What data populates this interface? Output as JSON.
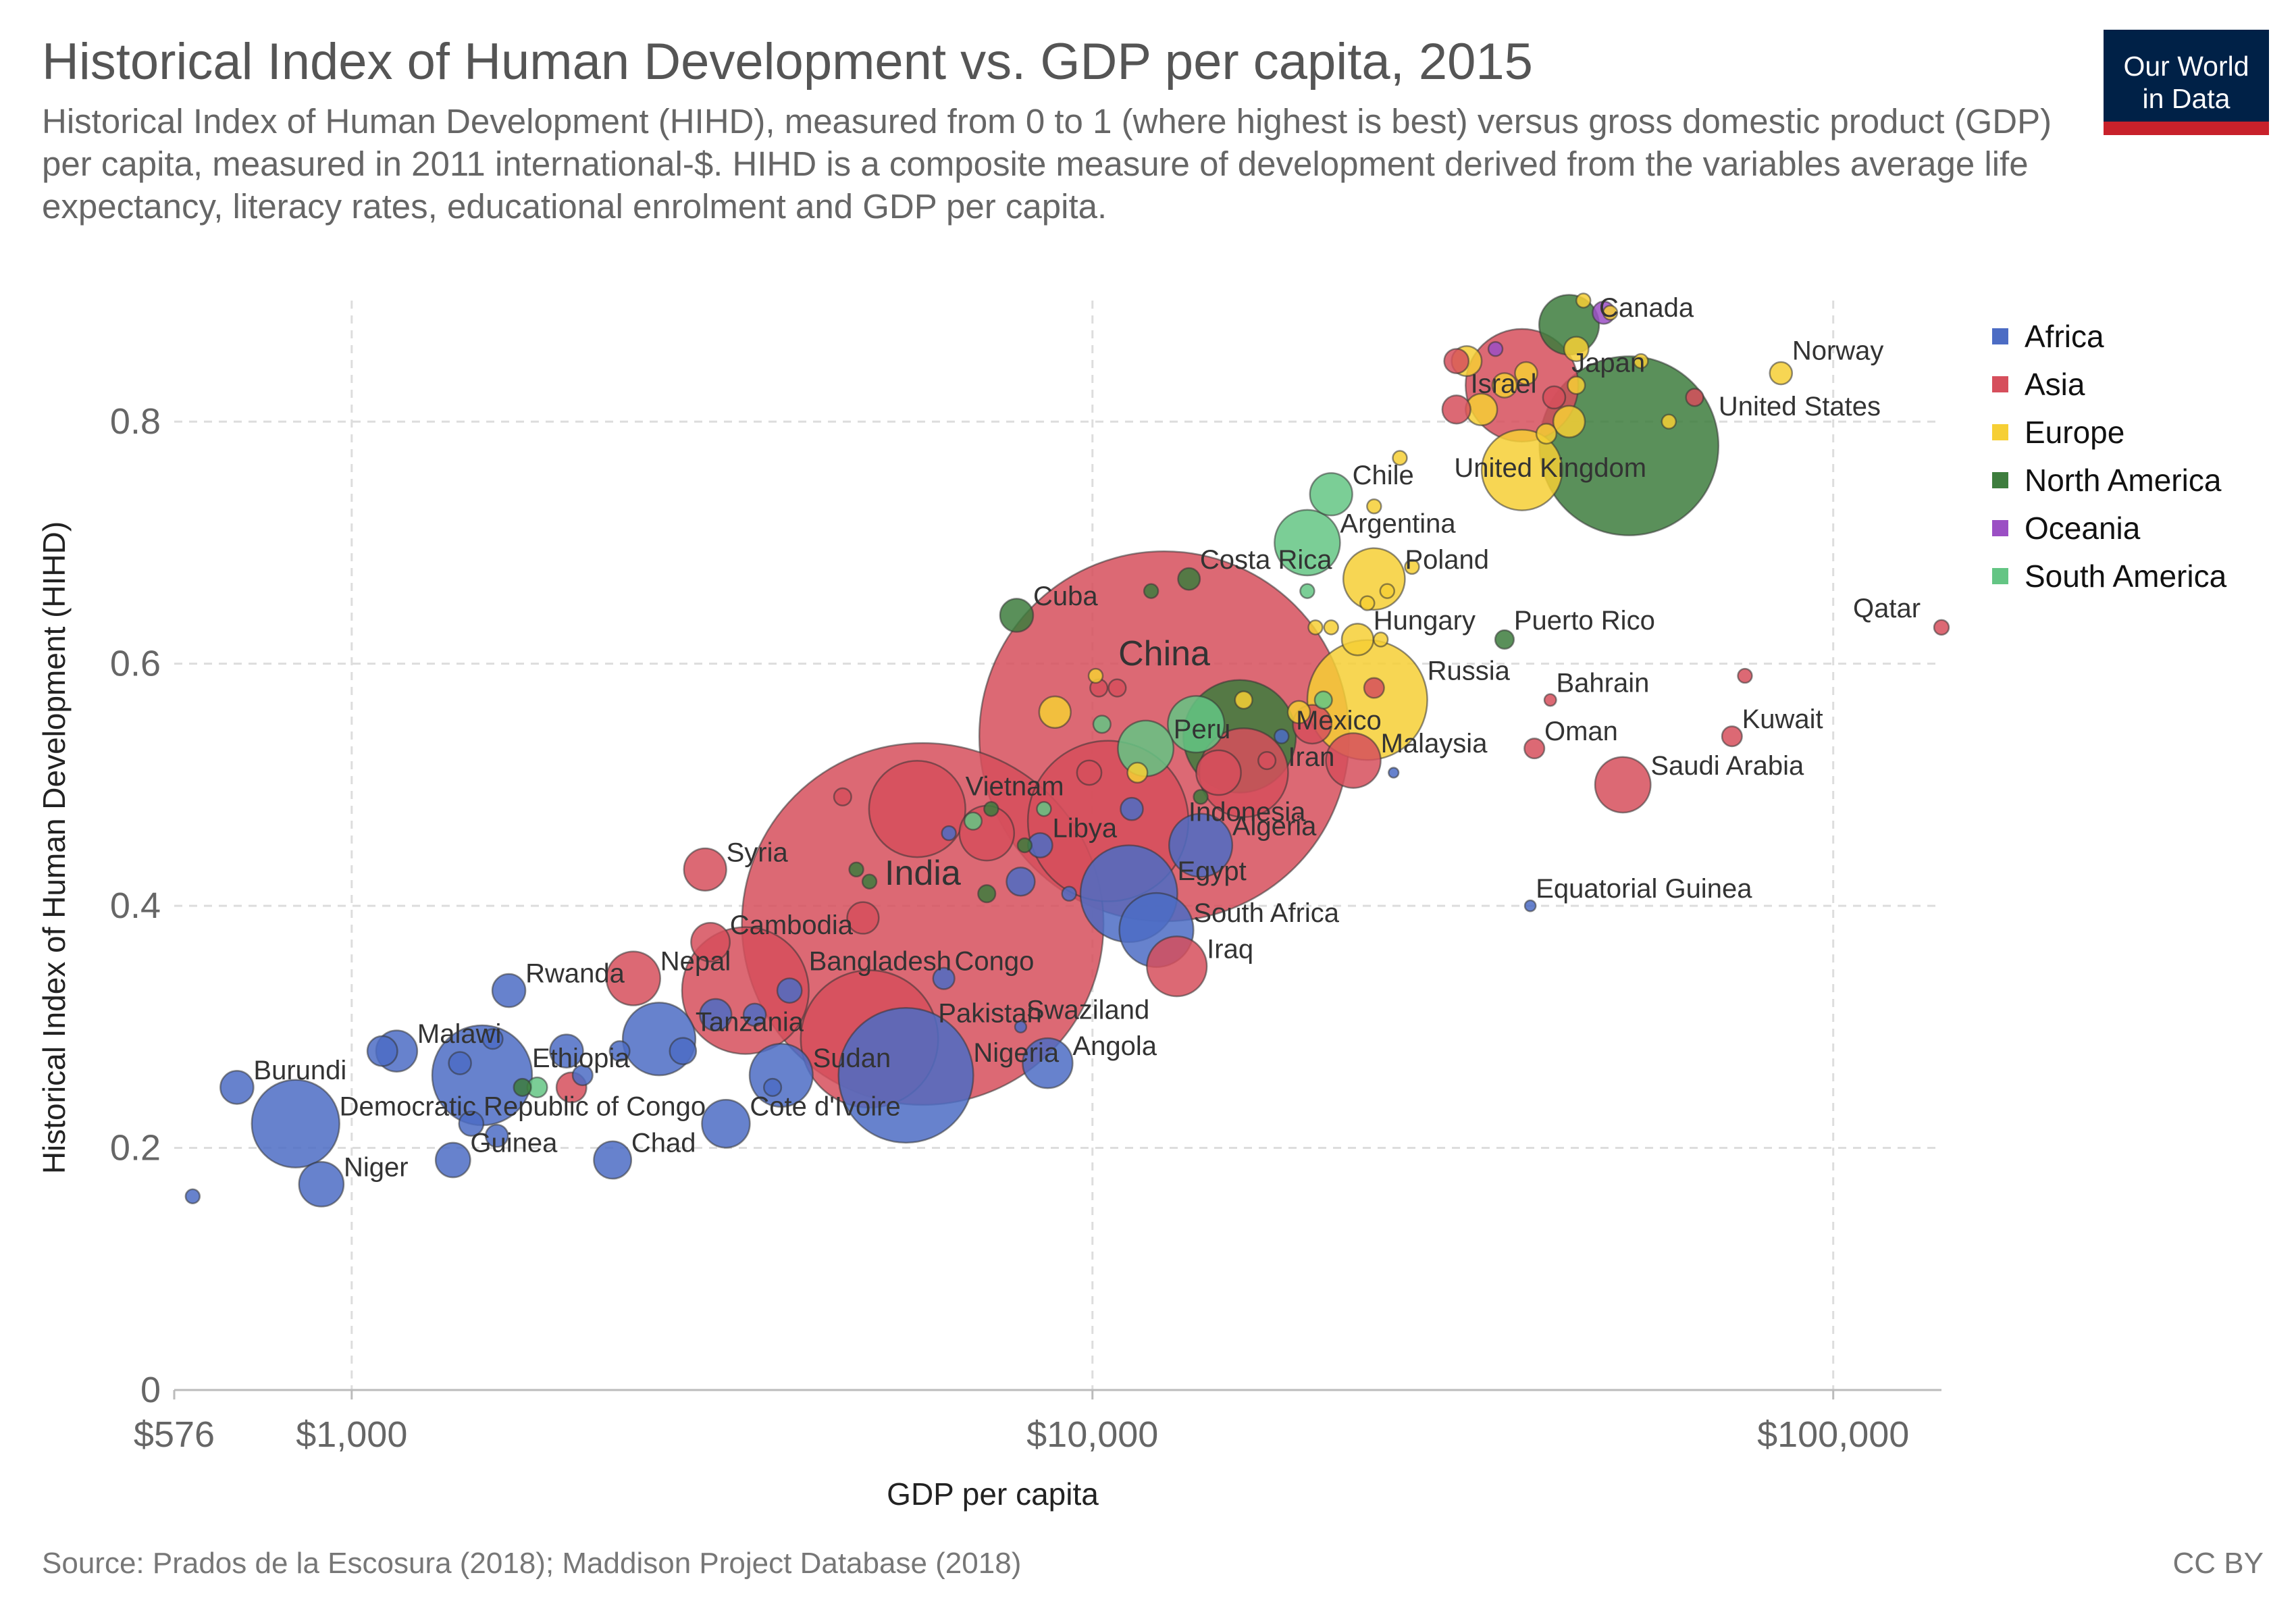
{
  "header": {
    "title": "Historical Index of Human Development vs. GDP per capita, 2015",
    "subtitle": "Historical Index of Human Development (HIHD), measured from 0 to 1 (where highest is best) versus gross domestic product (GDP) per capita, measured in 2011 international-$. HIHD is a composite measure of development derived from the variables average life expectancy, literacy rates, educational enrolment and GDP per capita.",
    "logo_line1": "Our World",
    "logo_line2": "in Data"
  },
  "footer": {
    "source": "Source: Prados de la Escosura (2018); Maddison Project Database (2018)",
    "license": "CC BY"
  },
  "colors": {
    "Africa": "#4c6cc4",
    "Asia": "#d64f5c",
    "Europe": "#f6cf35",
    "North America": "#3d7d3d",
    "Oceania": "#9b4fc4",
    "South America": "#64c584"
  },
  "chart_data": {
    "type": "scatter",
    "title": "Historical Index of Human Development vs. GDP per capita, 2015",
    "xlabel": "GDP per capita",
    "ylabel": "Historical Index of Human Development (HIHD)",
    "x_scale": "log",
    "xlim": [
      576,
      140000
    ],
    "ylim": [
      0,
      0.9
    ],
    "x_ticks": [
      {
        "value": 576,
        "label": "$576"
      },
      {
        "value": 1000,
        "label": "$1,000"
      },
      {
        "value": 10000,
        "label": "$10,000"
      },
      {
        "value": 100000,
        "label": "$100,000"
      }
    ],
    "y_ticks": [
      {
        "value": 0,
        "label": "0"
      },
      {
        "value": 0.2,
        "label": "0.2"
      },
      {
        "value": 0.4,
        "label": "0.4"
      },
      {
        "value": 0.6,
        "label": "0.6"
      },
      {
        "value": 0.8,
        "label": "0.8"
      }
    ],
    "grid": true,
    "legend_position": "right",
    "legend": [
      "Africa",
      "Asia",
      "Europe",
      "North America",
      "Oceania",
      "South America"
    ],
    "points": [
      {
        "label": "China",
        "x": 12500,
        "y": 0.54,
        "region": "Asia",
        "size": 1370,
        "big": true
      },
      {
        "label": "India",
        "x": 5900,
        "y": 0.385,
        "region": "Asia",
        "size": 1310,
        "big": true
      },
      {
        "label": "Peru",
        "x": 11800,
        "y": 0.53,
        "region": "South America",
        "size": 31
      },
      {
        "label": "United States",
        "x": 53000,
        "y": 0.78,
        "region": "North America",
        "size": 321
      },
      {
        "label": "Indonesia",
        "x": 10500,
        "y": 0.47,
        "region": "Asia",
        "size": 258
      },
      {
        "label": "Pakistan",
        "x": 5000,
        "y": 0.29,
        "region": "Asia",
        "size": 189
      },
      {
        "label": "Nigeria",
        "x": 5600,
        "y": 0.26,
        "region": "Africa",
        "size": 182
      },
      {
        "label": "Bangladesh",
        "x": 3400,
        "y": 0.33,
        "region": "Asia",
        "size": 161
      },
      {
        "label": "Mexico",
        "x": 15800,
        "y": 0.54,
        "region": "North America",
        "size": 127
      },
      {
        "label": "Japan",
        "x": 38000,
        "y": 0.83,
        "region": "Asia",
        "size": 127
      },
      {
        "label": "Ethiopia",
        "x": 1500,
        "y": 0.26,
        "region": "Africa",
        "size": 100
      },
      {
        "label": "Vietnam",
        "x": 5800,
        "y": 0.48,
        "region": "Asia",
        "size": 93
      },
      {
        "label": "Egypt",
        "x": 11200,
        "y": 0.41,
        "region": "Africa",
        "size": 94
      },
      {
        "label": "Iran",
        "x": 16000,
        "y": 0.51,
        "region": "Asia",
        "size": 79
      },
      {
        "label": "Democratic Republic of Congo",
        "x": 840,
        "y": 0.22,
        "region": "Africa",
        "size": 77
      },
      {
        "label": "Russia",
        "x": 23500,
        "y": 0.57,
        "region": "Europe",
        "size": 144
      },
      {
        "label": "United Kingdom",
        "x": 38000,
        "y": 0.76,
        "region": "Europe",
        "size": 65
      },
      {
        "label": "Tanzania",
        "x": 2600,
        "y": 0.29,
        "region": "Africa",
        "size": 53
      },
      {
        "label": "South Africa",
        "x": 12200,
        "y": 0.38,
        "region": "Africa",
        "size": 55
      },
      {
        "label": "Sudan",
        "x": 3800,
        "y": 0.26,
        "region": "Africa",
        "size": 40
      },
      {
        "label": "Argentina",
        "x": 19500,
        "y": 0.7,
        "region": "South America",
        "size": 43
      },
      {
        "label": "Algeria",
        "x": 14000,
        "y": 0.45,
        "region": "Africa",
        "size": 40
      },
      {
        "label": "Iraq",
        "x": 13000,
        "y": 0.35,
        "region": "Asia",
        "size": 36
      },
      {
        "label": "Poland",
        "x": 24000,
        "y": 0.67,
        "region": "Europe",
        "size": 38
      },
      {
        "label": "Canada",
        "x": 44000,
        "y": 0.88,
        "region": "North America",
        "size": 36
      },
      {
        "label": "Malaysia",
        "x": 22500,
        "y": 0.52,
        "region": "Asia",
        "size": 30
      },
      {
        "label": "Nepal",
        "x": 2400,
        "y": 0.34,
        "region": "Asia",
        "size": 29
      },
      {
        "label": "Saudi Arabia",
        "x": 52000,
        "y": 0.5,
        "region": "Asia",
        "size": 31
      },
      {
        "label": "Angola",
        "x": 8700,
        "y": 0.27,
        "region": "Africa",
        "size": 25
      },
      {
        "label": "Cote d'Ivoire",
        "x": 3200,
        "y": 0.22,
        "region": "Africa",
        "size": 23
      },
      {
        "label": "Niger",
        "x": 910,
        "y": 0.17,
        "region": "Africa",
        "size": 20
      },
      {
        "label": "Chile",
        "x": 21000,
        "y": 0.74,
        "region": "South America",
        "size": 18
      },
      {
        "label": "Malawi",
        "x": 1150,
        "y": 0.28,
        "region": "Africa",
        "size": 17
      },
      {
        "label": "Syria",
        "x": 3000,
        "y": 0.43,
        "region": "Asia",
        "size": 18
      },
      {
        "label": "Cambodia",
        "x": 3050,
        "y": 0.37,
        "region": "Asia",
        "size": 15
      },
      {
        "label": "Guinea",
        "x": 1370,
        "y": 0.19,
        "region": "Africa",
        "size": 12
      },
      {
        "label": "Chad",
        "x": 2250,
        "y": 0.19,
        "region": "Africa",
        "size": 14
      },
      {
        "label": "Rwanda",
        "x": 1630,
        "y": 0.33,
        "region": "Africa",
        "size": 11
      },
      {
        "label": "Burundi",
        "x": 700,
        "y": 0.25,
        "region": "Africa",
        "size": 11
      },
      {
        "label": "Cuba",
        "x": 7900,
        "y": 0.64,
        "region": "North America",
        "size": 11
      },
      {
        "label": "Hungary",
        "x": 22800,
        "y": 0.62,
        "region": "Europe",
        "size": 10
      },
      {
        "label": "Libya",
        "x": 8500,
        "y": 0.45,
        "region": "Africa",
        "size": 6
      },
      {
        "label": "Israel",
        "x": 31000,
        "y": 0.81,
        "region": "Asia",
        "size": 8
      },
      {
        "label": "Norway",
        "x": 85000,
        "y": 0.84,
        "region": "Europe",
        "size": 5
      },
      {
        "label": "Bahrain",
        "x": 41500,
        "y": 0.57,
        "region": "Asia",
        "size": 1.4
      },
      {
        "label": "Oman",
        "x": 39500,
        "y": 0.53,
        "region": "Asia",
        "size": 4
      },
      {
        "label": "Kuwait",
        "x": 73000,
        "y": 0.54,
        "region": "Asia",
        "size": 4
      },
      {
        "label": "Qatar",
        "x": 140000,
        "y": 0.63,
        "region": "Asia",
        "size": 2.2
      },
      {
        "label": "Puerto Rico",
        "x": 36000,
        "y": 0.62,
        "region": "North America",
        "size": 3.5
      },
      {
        "label": "Equatorial Guinea",
        "x": 39000,
        "y": 0.4,
        "region": "Africa",
        "size": 1.2
      },
      {
        "label": "Swaziland",
        "x": 8000,
        "y": 0.3,
        "region": "Africa",
        "size": 1.3
      },
      {
        "label": "Congo",
        "x": 6300,
        "y": 0.34,
        "region": "Africa",
        "size": 4.6
      },
      {
        "label": "Costa Rica",
        "x": 13500,
        "y": 0.67,
        "region": "North America",
        "size": 4.8
      },
      {
        "label": "",
        "x": 610,
        "y": 0.16,
        "region": "Africa",
        "size": 2
      },
      {
        "label": "",
        "x": 1100,
        "y": 0.28,
        "region": "Africa",
        "size": 9
      },
      {
        "label": "",
        "x": 1400,
        "y": 0.27,
        "region": "Africa",
        "size": 5
      },
      {
        "label": "",
        "x": 1450,
        "y": 0.22,
        "region": "Africa",
        "size": 6
      },
      {
        "label": "",
        "x": 1550,
        "y": 0.29,
        "region": "Africa",
        "size": 4
      },
      {
        "label": "",
        "x": 1570,
        "y": 0.21,
        "region": "Africa",
        "size": 5
      },
      {
        "label": "",
        "x": 1950,
        "y": 0.28,
        "region": "Africa",
        "size": 11
      },
      {
        "label": "",
        "x": 2050,
        "y": 0.26,
        "region": "Africa",
        "size": 4
      },
      {
        "label": "",
        "x": 2300,
        "y": 0.28,
        "region": "Africa",
        "size": 4
      },
      {
        "label": "",
        "x": 2800,
        "y": 0.28,
        "region": "Africa",
        "size": 7
      },
      {
        "label": "",
        "x": 3100,
        "y": 0.31,
        "region": "Africa",
        "size": 10
      },
      {
        "label": "",
        "x": 3500,
        "y": 0.31,
        "region": "Africa",
        "size": 5
      },
      {
        "label": "",
        "x": 3700,
        "y": 0.25,
        "region": "Africa",
        "size": 3
      },
      {
        "label": "",
        "x": 3900,
        "y": 0.33,
        "region": "Africa",
        "size": 6
      },
      {
        "label": "",
        "x": 6400,
        "y": 0.46,
        "region": "Africa",
        "size": 2
      },
      {
        "label": "",
        "x": 8000,
        "y": 0.42,
        "region": "Africa",
        "size": 8
      },
      {
        "label": "",
        "x": 9300,
        "y": 0.41,
        "region": "Africa",
        "size": 2
      },
      {
        "label": "",
        "x": 11300,
        "y": 0.48,
        "region": "Africa",
        "size": 5
      },
      {
        "label": "",
        "x": 18000,
        "y": 0.54,
        "region": "Africa",
        "size": 2
      },
      {
        "label": "",
        "x": 25500,
        "y": 0.51,
        "region": "Africa",
        "size": 1
      },
      {
        "label": "",
        "x": 1980,
        "y": 0.25,
        "region": "Asia",
        "size": 9
      },
      {
        "label": "",
        "x": 4600,
        "y": 0.49,
        "region": "Asia",
        "size": 3
      },
      {
        "label": "",
        "x": 4900,
        "y": 0.39,
        "region": "Asia",
        "size": 10
      },
      {
        "label": "",
        "x": 7200,
        "y": 0.46,
        "region": "Asia",
        "size": 30
      },
      {
        "label": "",
        "x": 9900,
        "y": 0.51,
        "region": "Asia",
        "size": 6
      },
      {
        "label": "",
        "x": 10200,
        "y": 0.58,
        "region": "Asia",
        "size": 3
      },
      {
        "label": "",
        "x": 10800,
        "y": 0.58,
        "region": "Asia",
        "size": 3
      },
      {
        "label": "",
        "x": 14800,
        "y": 0.51,
        "region": "Asia",
        "size": 20
      },
      {
        "label": "",
        "x": 17200,
        "y": 0.52,
        "region": "Asia",
        "size": 3
      },
      {
        "label": "",
        "x": 19800,
        "y": 0.55,
        "region": "Asia",
        "size": 15
      },
      {
        "label": "",
        "x": 24000,
        "y": 0.58,
        "region": "Asia",
        "size": 4
      },
      {
        "label": "",
        "x": 31000,
        "y": 0.85,
        "region": "Asia",
        "size": 6
      },
      {
        "label": "",
        "x": 42000,
        "y": 0.82,
        "region": "Asia",
        "size": 5
      },
      {
        "label": "",
        "x": 76000,
        "y": 0.59,
        "region": "Asia",
        "size": 2
      },
      {
        "label": "",
        "x": 65000,
        "y": 0.82,
        "region": "Asia",
        "size": 3
      },
      {
        "label": "",
        "x": 8900,
        "y": 0.56,
        "region": "Europe",
        "size": 10
      },
      {
        "label": "",
        "x": 10100,
        "y": 0.59,
        "region": "Europe",
        "size": 2
      },
      {
        "label": "",
        "x": 11500,
        "y": 0.51,
        "region": "Europe",
        "size": 4
      },
      {
        "label": "",
        "x": 16000,
        "y": 0.57,
        "region": "Europe",
        "size": 3
      },
      {
        "label": "",
        "x": 19000,
        "y": 0.56,
        "region": "Europe",
        "size": 5
      },
      {
        "label": "",
        "x": 20000,
        "y": 0.63,
        "region": "Europe",
        "size": 2
      },
      {
        "label": "",
        "x": 21000,
        "y": 0.63,
        "region": "Europe",
        "size": 2
      },
      {
        "label": "",
        "x": 23500,
        "y": 0.65,
        "region": "Europe",
        "size": 2
      },
      {
        "label": "",
        "x": 24500,
        "y": 0.62,
        "region": "Europe",
        "size": 2
      },
      {
        "label": "",
        "x": 25000,
        "y": 0.66,
        "region": "Europe",
        "size": 2
      },
      {
        "label": "",
        "x": 26000,
        "y": 0.77,
        "region": "Europe",
        "size": 2
      },
      {
        "label": "",
        "x": 24000,
        "y": 0.73,
        "region": "Europe",
        "size": 2
      },
      {
        "label": "",
        "x": 27000,
        "y": 0.68,
        "region": "Europe",
        "size": 2
      },
      {
        "label": "",
        "x": 32000,
        "y": 0.85,
        "region": "Europe",
        "size": 9
      },
      {
        "label": "",
        "x": 33500,
        "y": 0.81,
        "region": "Europe",
        "size": 10
      },
      {
        "label": "",
        "x": 36000,
        "y": 0.83,
        "region": "Europe",
        "size": 6
      },
      {
        "label": "",
        "x": 38500,
        "y": 0.84,
        "region": "Europe",
        "size": 5
      },
      {
        "label": "",
        "x": 41000,
        "y": 0.79,
        "region": "Europe",
        "size": 4
      },
      {
        "label": "",
        "x": 44000,
        "y": 0.8,
        "region": "Europe",
        "size": 10
      },
      {
        "label": "",
        "x": 45000,
        "y": 0.86,
        "region": "Europe",
        "size": 6
      },
      {
        "label": "",
        "x": 45000,
        "y": 0.83,
        "region": "Europe",
        "size": 3
      },
      {
        "label": "",
        "x": 46000,
        "y": 0.9,
        "region": "Europe",
        "size": 2
      },
      {
        "label": "",
        "x": 50000,
        "y": 0.89,
        "region": "Europe",
        "size": 2
      },
      {
        "label": "",
        "x": 55000,
        "y": 0.85,
        "region": "Europe",
        "size": 2
      },
      {
        "label": "",
        "x": 60000,
        "y": 0.8,
        "region": "Europe",
        "size": 2
      },
      {
        "label": "",
        "x": 4800,
        "y": 0.43,
        "region": "North America",
        "size": 2
      },
      {
        "label": "",
        "x": 5000,
        "y": 0.42,
        "region": "North America",
        "size": 2
      },
      {
        "label": "",
        "x": 7200,
        "y": 0.41,
        "region": "North America",
        "size": 3
      },
      {
        "label": "",
        "x": 7300,
        "y": 0.48,
        "region": "North America",
        "size": 2
      },
      {
        "label": "",
        "x": 8100,
        "y": 0.45,
        "region": "North America",
        "size": 2
      },
      {
        "label": "",
        "x": 12000,
        "y": 0.66,
        "region": "North America",
        "size": 2
      },
      {
        "label": "",
        "x": 14000,
        "y": 0.49,
        "region": "North America",
        "size": 2
      },
      {
        "label": "",
        "x": 1700,
        "y": 0.25,
        "region": "North America",
        "size": 3
      },
      {
        "label": "",
        "x": 1780,
        "y": 0.25,
        "region": "South America",
        "size": 4
      },
      {
        "label": "",
        "x": 6900,
        "y": 0.47,
        "region": "South America",
        "size": 3
      },
      {
        "label": "",
        "x": 8600,
        "y": 0.48,
        "region": "South America",
        "size": 2
      },
      {
        "label": "",
        "x": 10300,
        "y": 0.55,
        "region": "South America",
        "size": 3
      },
      {
        "label": "",
        "x": 13800,
        "y": 0.55,
        "region": "South America",
        "size": 32
      },
      {
        "label": "",
        "x": 19500,
        "y": 0.66,
        "region": "South America",
        "size": 2
      },
      {
        "label": "",
        "x": 20500,
        "y": 0.57,
        "region": "South America",
        "size": 3
      },
      {
        "label": "",
        "x": 35000,
        "y": 0.86,
        "region": "Oceania",
        "size": 2
      },
      {
        "label": "",
        "x": 49000,
        "y": 0.89,
        "region": "Oceania",
        "size": 5
      }
    ]
  }
}
